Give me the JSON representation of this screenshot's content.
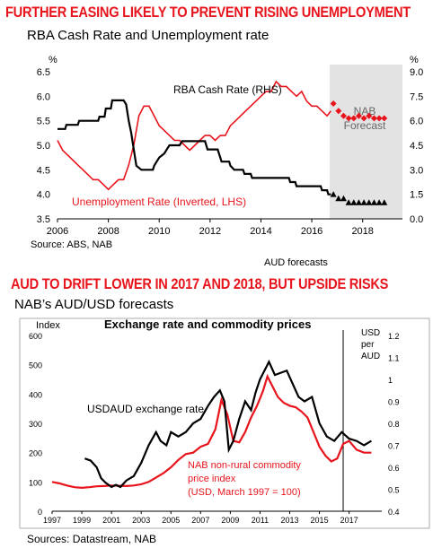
{
  "headline1": "FURTHER EASING LIKELY TO PREVENT RISING UNEMPLOYMENT",
  "subtitle1": "RBA Cash Rate and Unemployment rate",
  "source1": "Source: ABS, NAB",
  "headline2": "AUD TO DRIFT LOWER IN 2017 AND 2018, BUT UPSIDE RISKS",
  "subtitle2": "NAB’s AUD/USD forecasts",
  "aud_caption": "AUD forecasts",
  "source2": "Sources: Datastream, NAB",
  "colors": {
    "red": "#e8141c",
    "black": "#000000",
    "forecast_shade": "#e3e3e3"
  },
  "chart_data": [
    {
      "type": "line",
      "title": "",
      "xlabel": "",
      "ylabel_left": "%",
      "ylabel_right": "%",
      "x_ticks": [
        "2006",
        "2008",
        "2010",
        "2012",
        "2014",
        "2016",
        "2018"
      ],
      "y_left_ticks": [
        "3.5",
        "4.0",
        "4.5",
        "5.0",
        "5.5",
        "6.0",
        "6.5"
      ],
      "y_right_ticks": [
        "9.0",
        "7.5",
        "6.0",
        "4.5",
        "3.0",
        "1.5",
        "0.0"
      ],
      "ylim_left": [
        6.5,
        3.5
      ],
      "ylim_right": [
        0,
        9
      ],
      "left_axis_inverted": true,
      "forecast_region": {
        "label": "NAB Forecast",
        "x_start": 2016.7,
        "x_end": 2019.0
      },
      "annotations": {
        "cash_rate": "RBA Cash Rate (RHS)",
        "unemployment": "Unemployment Rate (Inverted, LHS)"
      },
      "series": [
        {
          "name": "RBA Cash Rate (RHS)",
          "axis": "right",
          "color": "#000000",
          "x": [
            2006.0,
            2006.3,
            2006.35,
            2006.8,
            2006.85,
            2007.6,
            2007.65,
            2007.85,
            2007.9,
            2008.1,
            2008.15,
            2008.6,
            2008.7,
            2008.8,
            2008.9,
            2009.0,
            2009.1,
            2009.3,
            2009.75,
            2009.8,
            2009.9,
            2010.0,
            2010.2,
            2010.3,
            2010.4,
            2010.8,
            2010.9,
            2011.8,
            2011.85,
            2011.9,
            2012.3,
            2012.4,
            2012.45,
            2012.75,
            2012.8,
            2012.95,
            2013.3,
            2013.35,
            2013.6,
            2013.65,
            2015.1,
            2015.15,
            2015.35,
            2015.4,
            2016.35,
            2016.4,
            2016.6,
            2016.65,
            2016.75
          ],
          "y": [
            5.5,
            5.5,
            5.75,
            5.75,
            6.0,
            6.0,
            6.25,
            6.25,
            6.75,
            6.75,
            7.25,
            7.25,
            7.0,
            6.0,
            5.25,
            4.25,
            3.25,
            3.0,
            3.0,
            3.25,
            3.5,
            3.75,
            4.0,
            4.25,
            4.5,
            4.5,
            4.75,
            4.75,
            4.5,
            4.25,
            4.25,
            3.75,
            3.5,
            3.5,
            3.25,
            3.0,
            3.0,
            2.75,
            2.75,
            2.5,
            2.5,
            2.25,
            2.25,
            2.0,
            2.0,
            1.75,
            1.75,
            1.5,
            1.5
          ]
        },
        {
          "name": "Unemployment Rate (Inverted, LHS)",
          "axis": "left",
          "color": "#e8141c",
          "x": [
            2006.0,
            2006.2,
            2006.4,
            2006.6,
            2006.8,
            2007.0,
            2007.2,
            2007.4,
            2007.6,
            2007.8,
            2008.0,
            2008.2,
            2008.4,
            2008.6,
            2008.8,
            2009.0,
            2009.2,
            2009.4,
            2009.6,
            2009.8,
            2010.0,
            2010.2,
            2010.4,
            2010.6,
            2010.8,
            2011.0,
            2011.2,
            2011.4,
            2011.6,
            2011.8,
            2012.0,
            2012.2,
            2012.4,
            2012.6,
            2012.8,
            2013.0,
            2013.2,
            2013.4,
            2013.6,
            2013.8,
            2014.0,
            2014.2,
            2014.4,
            2014.6,
            2014.8,
            2015.0,
            2015.2,
            2015.4,
            2015.6,
            2015.8,
            2016.0,
            2016.2,
            2016.4,
            2016.6,
            2016.75
          ],
          "y": [
            5.1,
            4.9,
            4.8,
            4.7,
            4.6,
            4.5,
            4.4,
            4.3,
            4.3,
            4.2,
            4.1,
            4.2,
            4.3,
            4.3,
            4.6,
            5.0,
            5.6,
            5.8,
            5.8,
            5.6,
            5.4,
            5.3,
            5.2,
            5.1,
            5.1,
            5.0,
            4.9,
            5.0,
            5.1,
            5.2,
            5.2,
            5.1,
            5.2,
            5.2,
            5.4,
            5.5,
            5.6,
            5.7,
            5.8,
            5.9,
            6.0,
            6.1,
            6.1,
            6.3,
            6.2,
            6.2,
            6.1,
            6.0,
            6.1,
            5.9,
            5.8,
            5.8,
            5.7,
            5.6,
            5.7
          ]
        },
        {
          "name": "Unemployment Rate forecast",
          "axis": "left",
          "color": "#e8141c",
          "marker": "diamond",
          "x": [
            2016.85,
            2017.05,
            2017.25,
            2017.45,
            2017.65,
            2017.85,
            2018.05,
            2018.25,
            2018.45,
            2018.65,
            2018.85
          ],
          "y": [
            5.85,
            5.7,
            5.6,
            5.55,
            5.55,
            5.6,
            5.55,
            5.6,
            5.55,
            5.55,
            5.55
          ]
        },
        {
          "name": "RBA Cash Rate forecast",
          "axis": "right",
          "color": "#000000",
          "marker": "triangle",
          "x": [
            2016.85,
            2017.05,
            2017.25,
            2017.45,
            2017.65,
            2017.85,
            2018.05,
            2018.25,
            2018.45,
            2018.65,
            2018.85
          ],
          "y": [
            1.5,
            1.25,
            1.25,
            1.0,
            1.0,
            1.0,
            1.0,
            1.0,
            1.0,
            1.0,
            1.0
          ]
        }
      ]
    },
    {
      "type": "line",
      "title": "Exchange rate and commodity prices",
      "ylabel_left": "Index",
      "ylabel_right": "USD per AUD",
      "x_ticks": [
        "1997",
        "1999",
        "2001",
        "2003",
        "2005",
        "2007",
        "2009",
        "2011",
        "2013",
        "2015",
        "2017"
      ],
      "y_left_ticks": [
        "0",
        "100",
        "200",
        "300",
        "400",
        "500",
        "600"
      ],
      "y_right_ticks": [
        "0.4",
        "0.5",
        "0.6",
        "0.7",
        "0.8",
        "0.9",
        "1",
        "1.1",
        "1.2"
      ],
      "ylim_left": [
        0,
        600
      ],
      "ylim_right": [
        0.4,
        1.2
      ],
      "forecast_divider_x": 2016.6,
      "annotations": {
        "exchange": "USDAUD exchange rate",
        "commodity": [
          "NAB non-rural commodity",
          "price index",
          "(USD, March 1997 = 100)"
        ]
      },
      "series": [
        {
          "name": "USDAUD exchange rate",
          "axis": "right",
          "color": "#000000",
          "x": [
            1999.2,
            1999.6,
            2000.0,
            2000.3,
            2000.6,
            2001.0,
            2001.3,
            2001.6,
            2002.0,
            2002.5,
            2003.0,
            2003.5,
            2004.0,
            2004.3,
            2004.7,
            2005.0,
            2005.5,
            2006.0,
            2006.5,
            2007.0,
            2007.5,
            2007.9,
            2008.3,
            2008.6,
            2008.9,
            2009.2,
            2009.6,
            2010.0,
            2010.4,
            2010.7,
            2011.0,
            2011.3,
            2011.6,
            2012.0,
            2012.4,
            2012.8,
            2013.2,
            2013.6,
            2014.0,
            2014.5,
            2015.0,
            2015.5,
            2016.0,
            2016.5,
            2017.0,
            2017.5,
            2018.0,
            2018.5
          ],
          "y": [
            0.64,
            0.63,
            0.6,
            0.55,
            0.53,
            0.51,
            0.52,
            0.51,
            0.54,
            0.56,
            0.62,
            0.7,
            0.76,
            0.72,
            0.7,
            0.76,
            0.74,
            0.76,
            0.8,
            0.82,
            0.88,
            0.92,
            0.95,
            0.9,
            0.68,
            0.72,
            0.82,
            0.9,
            0.86,
            0.94,
            1.0,
            1.04,
            1.08,
            1.02,
            1.03,
            1.04,
            0.98,
            0.92,
            0.9,
            0.92,
            0.8,
            0.74,
            0.72,
            0.76,
            0.73,
            0.72,
            0.7,
            0.72
          ]
        },
        {
          "name": "NAB non-rural commodity price index",
          "axis": "left",
          "color": "#e8141c",
          "x": [
            1997.0,
            1997.5,
            1998.0,
            1998.5,
            1999.0,
            1999.5,
            2000.0,
            2000.5,
            2001.0,
            2001.5,
            2002.0,
            2002.5,
            2003.0,
            2003.5,
            2004.0,
            2004.5,
            2005.0,
            2005.5,
            2006.0,
            2006.5,
            2007.0,
            2007.5,
            2008.0,
            2008.4,
            2008.8,
            2009.2,
            2009.6,
            2010.0,
            2010.4,
            2010.8,
            2011.2,
            2011.5,
            2011.8,
            2012.2,
            2012.6,
            2013.0,
            2013.4,
            2013.8,
            2014.2,
            2014.6,
            2015.0,
            2015.4,
            2015.8,
            2016.2,
            2016.6,
            2017.0,
            2017.5,
            2018.0,
            2018.5
          ],
          "y": [
            100,
            95,
            88,
            82,
            80,
            82,
            85,
            86,
            88,
            87,
            86,
            88,
            92,
            100,
            115,
            130,
            150,
            175,
            195,
            200,
            220,
            230,
            280,
            380,
            330,
            240,
            235,
            270,
            320,
            360,
            410,
            460,
            430,
            390,
            370,
            360,
            355,
            340,
            320,
            270,
            220,
            190,
            170,
            180,
            230,
            240,
            210,
            200,
            200
          ]
        }
      ]
    }
  ]
}
